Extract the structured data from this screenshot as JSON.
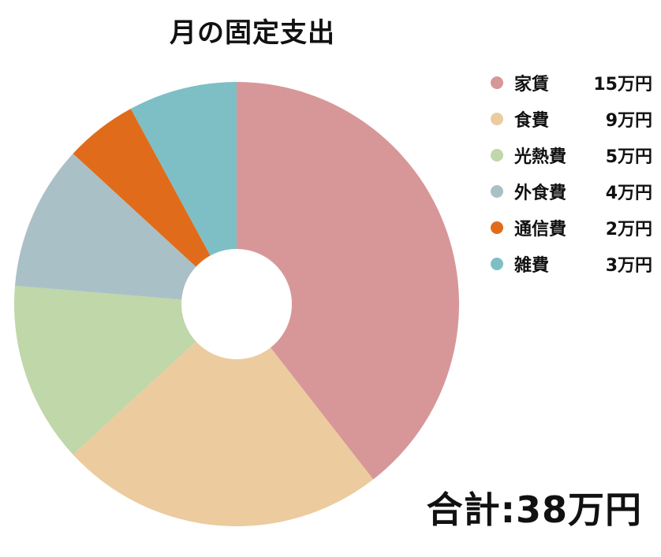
{
  "chart_data": {
    "type": "pie",
    "title": "月の固定支出",
    "legend_position": "right",
    "grid": false,
    "series": [
      {
        "name": "家賃",
        "label": "家賃",
        "value": 15,
        "amount_label": "15万円",
        "color": "#D79799"
      },
      {
        "name": "食費",
        "label": "食費",
        "value": 9,
        "amount_label": "9万円",
        "color": "#ECCB9F"
      },
      {
        "name": "光熱費",
        "label": "光熱費",
        "value": 5,
        "amount_label": "5万円",
        "color": "#BFD7A9"
      },
      {
        "name": "外食費",
        "label": "外食費",
        "value": 4,
        "amount_label": "4万円",
        "color": "#AAC0C7"
      },
      {
        "name": "通信費",
        "label": "通信費",
        "value": 2,
        "amount_label": "2万円",
        "color": "#E06C1B"
      },
      {
        "name": "雑費",
        "label": "雑費",
        "value": 3,
        "amount_label": "3万円",
        "color": "#7DBFC5"
      }
    ],
    "total_label": "合計:38万円"
  }
}
